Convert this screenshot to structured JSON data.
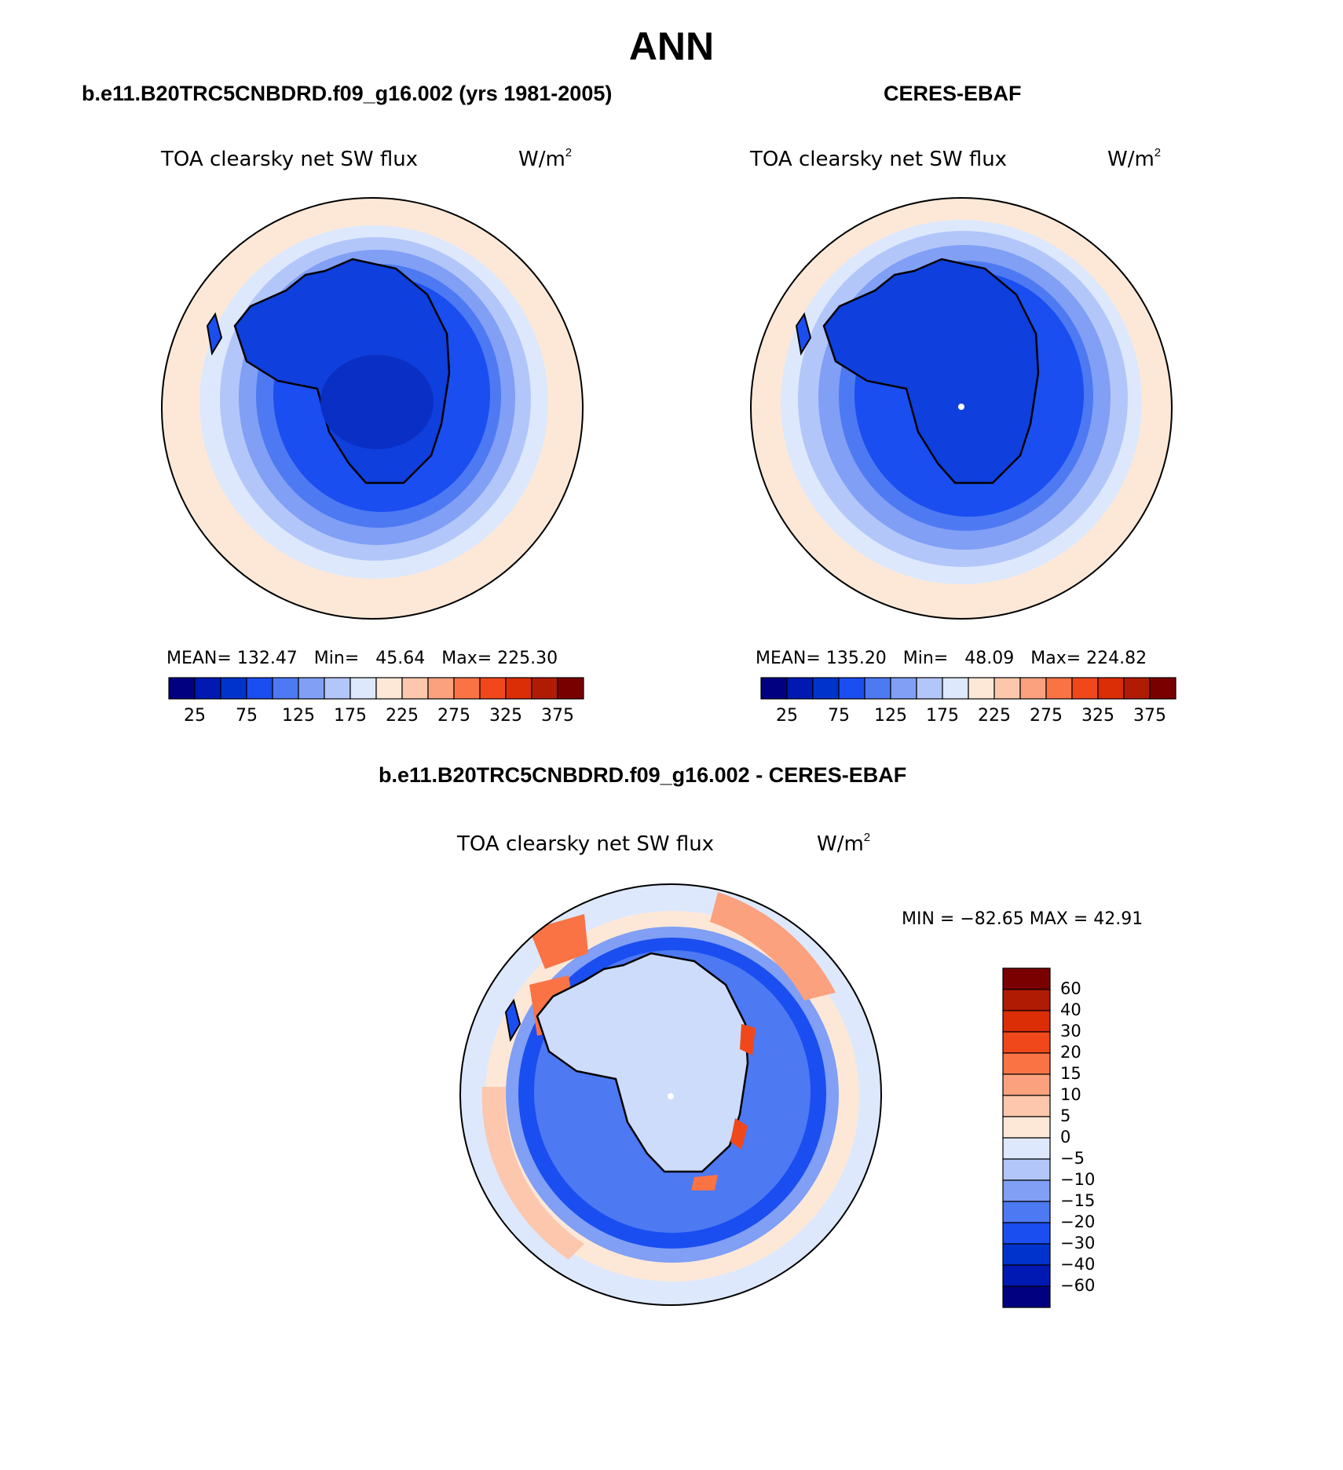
{
  "page": {
    "title": "ANN"
  },
  "panels": [
    {
      "id": "model",
      "case_title": "b.e11.B20TRC5CNBDRD.f09_g16.002 (yrs 1981-2005)",
      "variable_title": "TOA clearsky net SW flux",
      "units_base": "W/m",
      "units_exp": "2",
      "mean_label": "MEAN=",
      "mean_value": "132.47",
      "min_label": "Min=",
      "min_value": "45.64",
      "max_label": "Max=",
      "max_value": "225.30"
    },
    {
      "id": "obs",
      "case_title": "CERES-EBAF",
      "variable_title": "TOA clearsky net SW flux",
      "units_base": "W/m",
      "units_exp": "2",
      "mean_label": "MEAN=",
      "mean_value": "135.20",
      "min_label": "Min=",
      "min_value": "48.09",
      "max_label": "Max=",
      "max_value": "224.82"
    }
  ],
  "difference_panel": {
    "case_title": "b.e11.B20TRC5CNBDRD.f09_g16.002 - CERES-EBAF",
    "variable_title": "TOA clearsky net SW flux",
    "units_base": "W/m",
    "units_exp": "2",
    "minmax_text": "MIN = −82.65 MAX =   42.91"
  },
  "horizontal_colorbar": {
    "tick_labels": [
      "25",
      "75",
      "125",
      "175",
      "225",
      "275",
      "325",
      "375"
    ],
    "colors": [
      "#000080",
      "#0019b3",
      "#0033cc",
      "#1a4ef0",
      "#4d79f2",
      "#809ff5",
      "#b3c6f9",
      "#dde8fd",
      "#fde8d8",
      "#fcc7ad",
      "#fba17e",
      "#f97345",
      "#f0481b",
      "#db2d06",
      "#b01b04",
      "#7a0000"
    ]
  },
  "vertical_colorbar": {
    "labels": [
      "60",
      "40",
      "30",
      "20",
      "15",
      "10",
      "5",
      "0",
      "−5",
      "−10",
      "−15",
      "−20",
      "−30",
      "−40",
      "−60"
    ],
    "colors": [
      "#7a0000",
      "#b01b04",
      "#db2d06",
      "#f0481b",
      "#f97345",
      "#fba17e",
      "#fcc7ad",
      "#fde8d8",
      "#dde8fd",
      "#b3c6f9",
      "#809ff5",
      "#4d79f2",
      "#1a4ef0",
      "#0033cc",
      "#0019b3",
      "#000080"
    ]
  },
  "map_colors": {
    "ocean_outer": "#fde8d8",
    "ring1": "#dde8fd",
    "ring2": "#b3c6f9",
    "ring3": "#809ff5",
    "ring4": "#4d79f2",
    "ring5": "#1a4ef0",
    "continent": "#0f3fdc",
    "plateau": "#0a2fc4",
    "diff_land": "#cddcfb",
    "diff_blue": "#1a4ef0",
    "diff_red": "#f97345",
    "diff_pale_red": "#fcc7ad"
  }
}
